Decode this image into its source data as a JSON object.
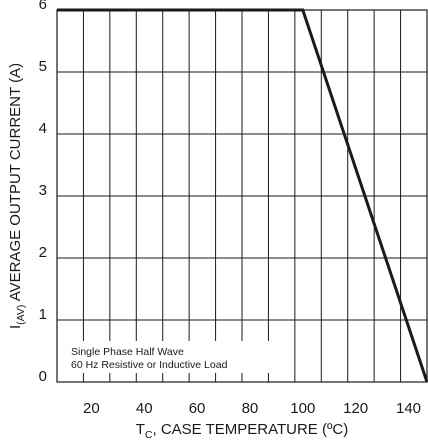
{
  "chart_data": {
    "type": "line",
    "title": "",
    "xlabel": {
      "main": "T",
      "sub": "C",
      "rest": ", CASE TEMPERATURE (ºC)"
    },
    "ylabel": {
      "main": "I",
      "sub": "(AV)",
      "rest": " AVERAGE OUTPUT CURRENT (A)"
    },
    "xlim": [
      7,
      147
    ],
    "ylim": [
      0,
      6
    ],
    "x_ticks": [
      20,
      40,
      60,
      80,
      100,
      120,
      140
    ],
    "y_ticks": [
      0,
      1,
      2,
      3,
      4,
      5,
      6
    ],
    "x_grid": [
      17,
      27,
      37,
      47,
      57,
      67,
      77,
      87,
      97,
      107,
      117,
      127,
      137
    ],
    "grid": true,
    "series": [
      {
        "name": "",
        "x": [
          7,
          100,
          147
        ],
        "y": [
          6,
          6,
          0
        ]
      }
    ],
    "annotations": [
      "Single Phase Half Wave",
      "60 Hz Resistive or Inductive Load"
    ]
  }
}
